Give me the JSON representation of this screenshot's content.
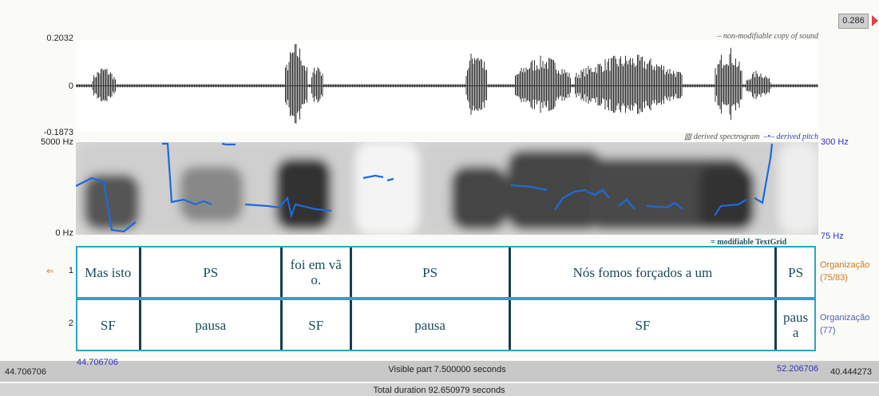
{
  "cursor": "0.286",
  "waveform": {
    "legend": "non-modifiable copy of sound",
    "ymax": "0.2032",
    "zero": "0",
    "ymin": "-0.1873"
  },
  "spectrogram": {
    "top": "5000 Hz",
    "bottom": "0 Hz",
    "legend": "derived spectrogram",
    "pitch_legend": "derived pitch",
    "pitch_top": "300 Hz",
    "pitch_bottom": "75 Hz"
  },
  "textgrid": {
    "legend": "modifiable TextGrid",
    "tiers": [
      {
        "number": "1",
        "name": "Organização",
        "count": "(75/83)",
        "intervals": [
          "Mas isto",
          "PS",
          "foi em vã o.",
          "PS",
          "Nós fomos forçados a um",
          "PS"
        ]
      },
      {
        "number": "2",
        "name": "Organização",
        "count": "(77)",
        "intervals": [
          "SF",
          "pausa",
          "SF",
          "pausa",
          "SF",
          "paus a"
        ]
      }
    ]
  },
  "footer": {
    "window_start": "44.706706",
    "visible_start": "44.706706",
    "visible_label": "Visible part 7.500000 seconds",
    "visible_end": "52.206706",
    "window_end": "40.444273",
    "total": "Total duration 92.650979 seconds"
  }
}
